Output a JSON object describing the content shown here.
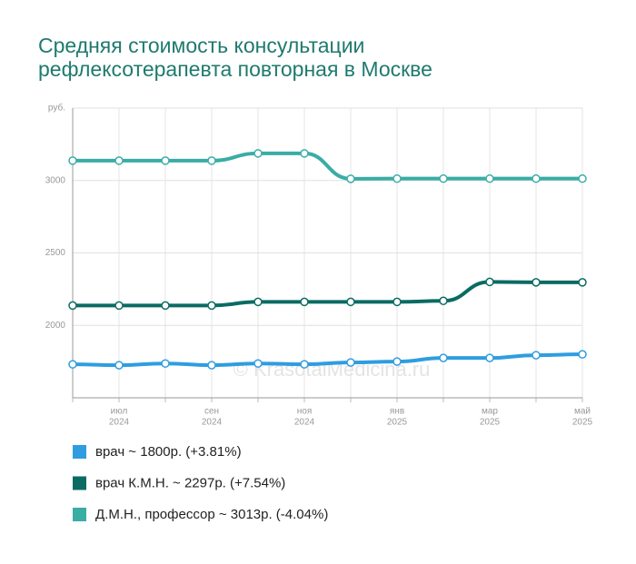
{
  "chart_data": {
    "type": "line",
    "title": [
      "Средняя стоимость консультации",
      "рефлексотерапевта повторная в Москве"
    ],
    "watermark": "© KrasotaiMedicina.ru",
    "categories": [
      null,
      "июл",
      null,
      "сен",
      null,
      "ноя",
      null,
      "янв",
      null,
      "мар",
      null,
      "май"
    ],
    "category_years": [
      null,
      "2024",
      null,
      "2024",
      null,
      "2024",
      null,
      "2025",
      null,
      "2025",
      null,
      "2025"
    ],
    "ylim": [
      1500,
      3500
    ],
    "yticks": [
      2000,
      2500,
      3000,
      {
        "value": 3500,
        "label": "руб."
      }
    ],
    "grid": true,
    "legend": "bottom",
    "series": [
      {
        "name": "врач ~ 1800р. (+3.81%)",
        "color": "#2f9de0",
        "values": [
          1731,
          1725,
          1737,
          1725,
          1737,
          1731,
          1744,
          1750,
          1775,
          1775,
          1794,
          1800
        ]
      },
      {
        "name": "врач К.М.Н. ~ 2297р. (+7.54%)",
        "color": "#0b6b63",
        "values": [
          2137,
          2137,
          2137,
          2137,
          2162,
          2162,
          2162,
          2162,
          2169,
          2300,
          2297,
          2297
        ]
      },
      {
        "name": "Д.М.Н., профессор ~ 3013р. (-4.04%)",
        "color": "#3aada5",
        "values": [
          3137,
          3137,
          3137,
          3137,
          3187,
          3187,
          3012,
          3013,
          3013,
          3013,
          3013,
          3013
        ]
      }
    ]
  }
}
